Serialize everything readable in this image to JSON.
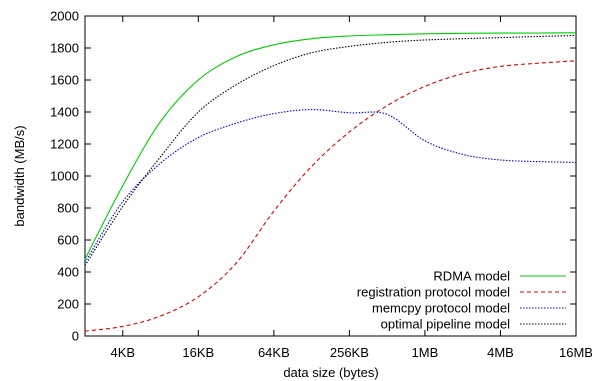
{
  "chart_data": {
    "type": "line",
    "title": "",
    "xlabel": "data size (bytes)",
    "ylabel": "bandwidth (MB/s)",
    "x_scale": "log2",
    "xlim": [
      "2KB",
      "16MB"
    ],
    "ylim": [
      0,
      2000
    ],
    "grid": false,
    "legend_position": "bottom-right",
    "x_ticks": [
      {
        "value": "4KB",
        "label": "4KB"
      },
      {
        "value": "16KB",
        "label": "16KB"
      },
      {
        "value": "64KB",
        "label": "64KB"
      },
      {
        "value": "256KB",
        "label": "256KB"
      },
      {
        "value": "1MB",
        "label": "1MB"
      },
      {
        "value": "4MB",
        "label": "4MB"
      },
      {
        "value": "16MB",
        "label": "16MB"
      }
    ],
    "y_ticks": [
      0,
      200,
      400,
      600,
      800,
      1000,
      1200,
      1400,
      1600,
      1800,
      2000
    ],
    "x": [
      "2KB",
      "4KB",
      "8KB",
      "16KB",
      "32KB",
      "64KB",
      "128KB",
      "256KB",
      "512KB",
      "1MB",
      "2MB",
      "4MB",
      "8MB",
      "16MB"
    ],
    "series": [
      {
        "name": "RDMA model",
        "color": "#00cc00",
        "dash": "solid",
        "values": [
          480,
          940,
          1340,
          1600,
          1745,
          1820,
          1858,
          1875,
          1883,
          1889,
          1892,
          1893,
          1894,
          1895
        ]
      },
      {
        "name": "registration protocol model",
        "color": "#dd0000",
        "dash": "dashed",
        "values": [
          30,
          60,
          125,
          245,
          455,
          780,
          1060,
          1275,
          1440,
          1560,
          1640,
          1685,
          1705,
          1720
        ]
      },
      {
        "name": "memcpy protocol model",
        "color": "#0000cc",
        "dash": "dotted",
        "values": [
          460,
          840,
          1080,
          1240,
          1330,
          1390,
          1415,
          1395,
          1385,
          1220,
          1135,
          1100,
          1090,
          1085
        ]
      },
      {
        "name": "optimal pipeline model",
        "color": "#000000",
        "dash": "dotted",
        "values": [
          440,
          810,
          1120,
          1400,
          1570,
          1690,
          1770,
          1810,
          1835,
          1850,
          1858,
          1865,
          1872,
          1878
        ]
      }
    ]
  }
}
